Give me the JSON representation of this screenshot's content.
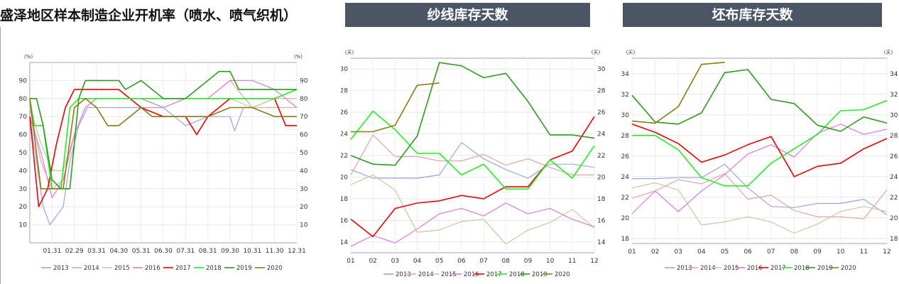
{
  "colors": {
    "2013": "#9aa7d8",
    "2014": "#e2a4a4",
    "2015": "#c8c8a4",
    "2016": "#e07ad6",
    "2017": "#ee0000",
    "2018": "#22ee22",
    "2019": "#2e9a1e",
    "2020": "#8a7a10"
  },
  "chart_data": [
    {
      "type": "line",
      "title": "盛泽地区样本制造企业开机率（喷水、喷气织机）",
      "y_unit_left": "(%)",
      "y_unit_right": "(%)",
      "ylim": [
        0,
        100
      ],
      "yticks": [
        "10",
        "20",
        "30",
        "40",
        "50",
        "60",
        "70",
        "80",
        "90"
      ],
      "categories": [
        "01.31",
        "02.29",
        "03.31",
        "04.30",
        "05.31",
        "06.30",
        "07.31",
        "08.31",
        "09.30",
        "10.31",
        "11.30",
        "12.31"
      ],
      "grid": true,
      "legend": "bottom",
      "x_range": [
        0,
        12
      ],
      "series": [
        {
          "name": "2013",
          "x": [
            0,
            0.3,
            0.6,
            0.9,
            1.2,
            1.5,
            1.8,
            2.2,
            2.6,
            3.0,
            4.0,
            5.0,
            6.0,
            7.0,
            8.0,
            9.0,
            9.2,
            9.6,
            10.0,
            11.0,
            12.0
          ],
          "y": [
            70,
            45,
            20,
            10,
            15,
            20,
            45,
            65,
            75,
            75,
            75,
            75,
            75,
            65,
            70,
            70,
            62,
            75,
            75,
            75,
            75
          ]
        },
        {
          "name": "2014",
          "x": [
            0,
            0.5,
            1.0,
            1.5,
            2.0,
            2.5,
            3.0,
            4.0,
            5.0,
            6.0,
            7.0,
            8.0,
            9.0,
            10.0,
            11.0,
            12.0
          ],
          "y": [
            75,
            45,
            30,
            35,
            60,
            75,
            80,
            80,
            80,
            75,
            80,
            80,
            90,
            75,
            80,
            80
          ]
        },
        {
          "name": "2015",
          "x": [
            0,
            0.5,
            1.0,
            1.5,
            2.0,
            2.5,
            3.0,
            4.0,
            5.0,
            6.0,
            7.0,
            8.0,
            9.0,
            10.0,
            11.0,
            12.0
          ],
          "y": [
            75,
            55,
            40,
            40,
            60,
            75,
            80,
            80,
            80,
            75,
            80,
            80,
            80,
            75,
            75,
            75
          ]
        },
        {
          "name": "2016",
          "x": [
            0,
            0.5,
            1.0,
            1.5,
            2.0,
            2.5,
            3.0,
            4.0,
            5.0,
            6.0,
            7.0,
            8.0,
            9.0,
            10.0,
            11.0,
            12.0
          ],
          "y": [
            70,
            50,
            25,
            35,
            60,
            75,
            80,
            80,
            80,
            75,
            80,
            80,
            90,
            90,
            85,
            75
          ]
        },
        {
          "name": "2017",
          "x": [
            0,
            0.4,
            0.8,
            1.2,
            1.6,
            2.0,
            2.4,
            2.8,
            3.2,
            4.0,
            5.0,
            6.0,
            7.0,
            7.5,
            8.0,
            9.0,
            10.0,
            11.0,
            11.5,
            12.0
          ],
          "y": [
            70,
            20,
            30,
            55,
            75,
            85,
            85,
            85,
            85,
            85,
            75,
            70,
            70,
            60,
            70,
            80,
            80,
            80,
            65,
            65
          ]
        },
        {
          "name": "2018",
          "x": [
            0,
            0.2,
            0.6,
            1.0,
            1.4,
            1.8,
            2.2,
            3.0,
            4.0,
            5.0,
            6.0,
            7.0,
            8.0,
            9.0,
            10.0,
            11.0,
            12.0
          ],
          "y": [
            80,
            65,
            65,
            30,
            30,
            75,
            80,
            80,
            80,
            80,
            80,
            80,
            80,
            80,
            80,
            80,
            85
          ]
        },
        {
          "name": "2019",
          "x": [
            0,
            0.3,
            0.6,
            1.0,
            1.4,
            1.8,
            2.2,
            2.5,
            3.0,
            3.5,
            4.0,
            4.3,
            5.0,
            6.0,
            7.0,
            8.0,
            8.5,
            9.0,
            9.4,
            10.0,
            11.0,
            12.0
          ],
          "y": [
            80,
            80,
            65,
            35,
            30,
            30,
            80,
            90,
            90,
            90,
            90,
            85,
            90,
            80,
            80,
            90,
            95,
            95,
            85,
            85,
            85,
            85
          ]
        },
        {
          "name": "2020",
          "x": [
            0,
            0.5,
            1.0,
            1.5,
            2.0,
            2.5,
            3.0,
            3.5,
            4.0,
            5.0,
            5.5,
            6.0,
            7.0,
            7.5,
            8.0,
            9.0,
            10.0,
            11.0,
            12.0
          ],
          "y": [
            80,
            30,
            30,
            30,
            75,
            80,
            75,
            65,
            65,
            75,
            70,
            70,
            70,
            70,
            70,
            75,
            75,
            70,
            70
          ]
        }
      ]
    },
    {
      "type": "line",
      "title": "纱线库存天数",
      "y_unit_left": "(天)",
      "y_unit_right": "(天)",
      "ylim": [
        13,
        31
      ],
      "yticks": [
        "14",
        "16",
        "18",
        "20",
        "22",
        "24",
        "26",
        "28",
        "30"
      ],
      "categories": [
        "01",
        "02",
        "03",
        "04",
        "05",
        "06",
        "07",
        "08",
        "09",
        "10",
        "11",
        "12"
      ],
      "grid": true,
      "legend": "bottom",
      "x_range": [
        1,
        12
      ],
      "series": [
        {
          "name": "2013",
          "x": [
            1,
            2,
            3,
            4,
            5,
            6,
            7,
            8,
            9,
            10,
            11,
            12
          ],
          "y": [
            20.7,
            19.9,
            19.9,
            19.9,
            20.2,
            23.2,
            21.7,
            20.7,
            19.9,
            21.2,
            21.2,
            20.9
          ]
        },
        {
          "name": "2014",
          "x": [
            1,
            2,
            3,
            4,
            5,
            6,
            7,
            8,
            9,
            10,
            11,
            12
          ],
          "y": [
            20.2,
            23.9,
            21.9,
            21.9,
            21.5,
            21.5,
            22.1,
            21.1,
            21.7,
            20.9,
            20.2,
            20.2
          ]
        },
        {
          "name": "2015",
          "x": [
            1,
            2,
            3,
            4,
            5,
            6,
            7,
            8,
            9,
            10,
            11,
            12
          ],
          "y": [
            19.3,
            20.2,
            18.8,
            14.9,
            15.1,
            15.9,
            16.1,
            13.8,
            15.1,
            15.8,
            17.0,
            15.3
          ]
        },
        {
          "name": "2016",
          "x": [
            1,
            2,
            3,
            4,
            5,
            6,
            7,
            8,
            9,
            10,
            11,
            12
          ],
          "y": [
            13.6,
            14.6,
            13.9,
            15.2,
            16.6,
            17.1,
            16.4,
            17.6,
            16.6,
            17.1,
            16.1,
            15.4
          ]
        },
        {
          "name": "2017",
          "x": [
            1,
            2,
            3,
            4,
            5,
            6,
            7,
            8,
            9,
            10,
            11,
            12
          ],
          "y": [
            16.1,
            14.5,
            17.1,
            17.6,
            17.8,
            18.3,
            18.0,
            19.1,
            19.1,
            21.6,
            22.4,
            25.6
          ]
        },
        {
          "name": "2018",
          "x": [
            1,
            2,
            3,
            4,
            5,
            6,
            7,
            8,
            9,
            10,
            11,
            12
          ],
          "y": [
            23.5,
            26.1,
            24.4,
            22.2,
            22.2,
            20.2,
            21.2,
            18.9,
            18.9,
            21.6,
            19.9,
            22.9
          ]
        },
        {
          "name": "2019",
          "x": [
            1,
            2,
            3,
            4,
            5,
            6,
            7,
            8,
            9,
            10,
            11,
            12
          ],
          "y": [
            22.0,
            21.2,
            21.1,
            23.8,
            30.6,
            30.3,
            29.2,
            29.6,
            27.0,
            23.9,
            23.9,
            23.6
          ]
        },
        {
          "name": "2020",
          "x": [
            1,
            2,
            3,
            4,
            5
          ],
          "y": [
            24.2,
            24.2,
            24.8,
            28.5,
            28.7
          ]
        }
      ]
    },
    {
      "type": "line",
      "title": "坯布库存天数",
      "y_unit_left": "(天)",
      "y_unit_right": "(天)",
      "ylim": [
        17.5,
        35.5
      ],
      "yticks": [
        "18",
        "20",
        "22",
        "24",
        "26",
        "28",
        "30",
        "32",
        "34"
      ],
      "categories": [
        "01",
        "02",
        "03",
        "04",
        "05",
        "06",
        "07",
        "08",
        "09",
        "10",
        "11",
        "12"
      ],
      "grid": true,
      "legend": "bottom",
      "x_range": [
        1,
        12
      ],
      "series": [
        {
          "name": "2013",
          "x": [
            1,
            2,
            3,
            4,
            5,
            6,
            7,
            8,
            9,
            10,
            11,
            12
          ],
          "y": [
            23.8,
            23.8,
            23.9,
            23.9,
            25.2,
            22.9,
            21.1,
            21.0,
            21.4,
            21.4,
            21.8,
            20.3
          ]
        },
        {
          "name": "2014",
          "x": [
            1,
            2,
            3,
            4,
            5,
            6,
            7,
            8,
            9,
            10,
            11,
            12
          ],
          "y": [
            21.9,
            22.6,
            23.7,
            23.3,
            24.3,
            21.8,
            22.2,
            20.7,
            20.1,
            20.1,
            19.9,
            22.7
          ]
        },
        {
          "name": "2015",
          "x": [
            1,
            2,
            3,
            4,
            5,
            6,
            7,
            8,
            9,
            10,
            11,
            12
          ],
          "y": [
            22.9,
            23.4,
            22.7,
            19.3,
            19.6,
            20.1,
            19.6,
            18.5,
            19.4,
            20.6,
            21.1,
            20.6
          ]
        },
        {
          "name": "2016",
          "x": [
            1,
            2,
            3,
            4,
            5,
            6,
            7,
            8,
            9,
            10,
            11,
            12
          ],
          "y": [
            20.4,
            22.6,
            20.6,
            22.6,
            24.2,
            26.2,
            27.1,
            25.9,
            28.2,
            29.1,
            28.1,
            28.6
          ]
        },
        {
          "name": "2017",
          "x": [
            1,
            2,
            3,
            4,
            5,
            6,
            7,
            8,
            9,
            10,
            11,
            12
          ],
          "y": [
            29.1,
            28.3,
            27.2,
            25.4,
            26.1,
            27.1,
            27.9,
            24.0,
            25.0,
            25.3,
            26.7,
            27.7
          ]
        },
        {
          "name": "2018",
          "x": [
            1,
            2,
            3,
            4,
            5,
            6,
            7,
            8,
            9,
            10,
            11,
            12
          ],
          "y": [
            28.0,
            28.0,
            26.6,
            23.9,
            23.1,
            23.1,
            25.3,
            26.7,
            28.1,
            30.4,
            30.5,
            31.4
          ]
        },
        {
          "name": "2019",
          "x": [
            1,
            2,
            3,
            4,
            5,
            6,
            7,
            8,
            9,
            10,
            11,
            12
          ],
          "y": [
            31.9,
            29.3,
            29.1,
            30.2,
            34.1,
            34.4,
            31.5,
            31.1,
            29.0,
            28.4,
            29.8,
            29.2
          ]
        },
        {
          "name": "2020",
          "x": [
            1,
            2,
            3,
            4,
            5
          ],
          "y": [
            29.4,
            29.2,
            30.8,
            34.9,
            35.1
          ]
        }
      ]
    }
  ]
}
